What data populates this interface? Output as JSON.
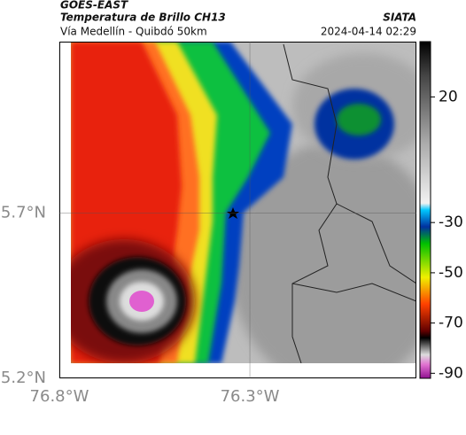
{
  "header": {
    "source": "GOES-EAST",
    "title": "Temperatura de Brillo CH13",
    "subtitle": "Vía Medellín - Quibdó 50km",
    "agency": "SIATA",
    "timestamp": "2024-04-14 02:29"
  },
  "map": {
    "xlim": [
      -76.8,
      -75.863
    ],
    "ylim": [
      5.2,
      6.22
    ],
    "lon_ticks": [
      {
        "value": -76.8,
        "label": "76.8°W"
      },
      {
        "value": -76.3,
        "label": "76.3°W"
      }
    ],
    "lat_ticks": [
      {
        "value": 5.7,
        "label": "5.7°N"
      },
      {
        "value": 5.2,
        "label": "5.2°N"
      }
    ]
  },
  "colorbar": {
    "range": [
      42,
      -92
    ],
    "ticks": [
      20,
      -30,
      -50,
      -70,
      -90
    ]
  }
}
